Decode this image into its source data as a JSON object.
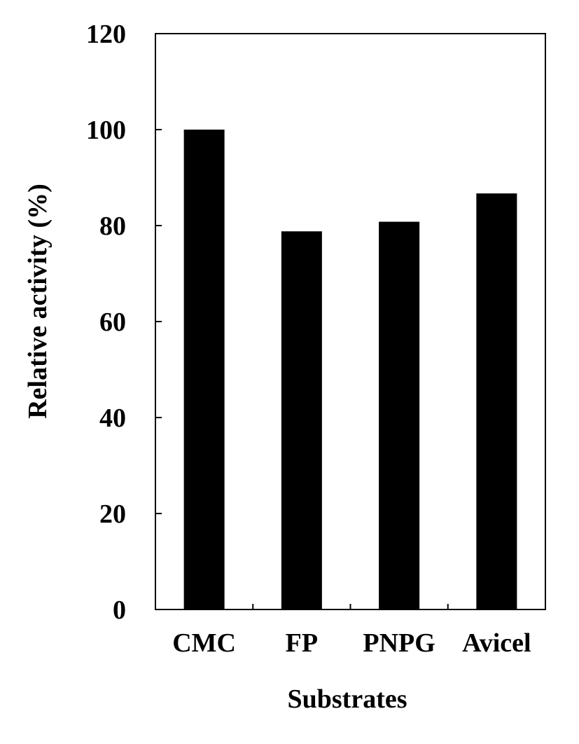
{
  "chart_data": {
    "type": "bar",
    "title": "",
    "xlabel": "Substrates",
    "ylabel": "Relative activity (%)",
    "categories": [
      "CMC",
      "FP",
      "PNPG",
      "Avicel"
    ],
    "values": [
      100,
      78.8,
      80.8,
      86.7
    ],
    "ylim": [
      0,
      120
    ],
    "yticks": [
      "0",
      "20",
      "40",
      "60",
      "80",
      "100",
      "120"
    ],
    "grid": false,
    "legend": "none",
    "bar_color": "#000000",
    "axis_color": "#000000"
  }
}
